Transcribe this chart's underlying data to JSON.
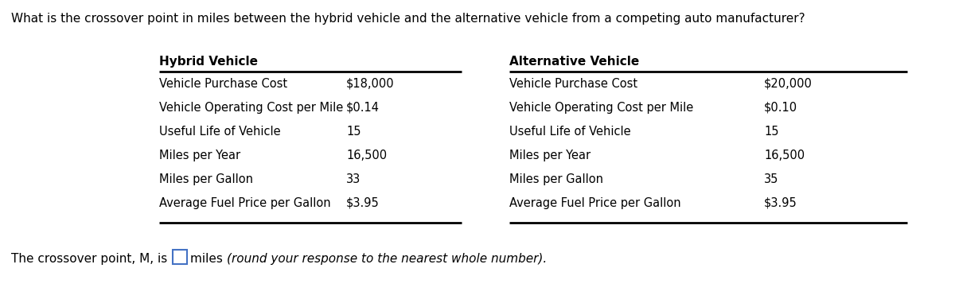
{
  "question": "What is the crossover point in miles between the hybrid vehicle and the alternative vehicle from a competing auto manufacturer?",
  "hybrid_title": "Hybrid Vehicle",
  "alternative_title": "Alternative Vehicle",
  "rows": [
    [
      "Vehicle Purchase Cost",
      "$18,000",
      "Vehicle Purchase Cost",
      "$20,000"
    ],
    [
      "Vehicle Operating Cost per Mile",
      "$0.14",
      "Vehicle Operating Cost per Mile",
      "$0.10"
    ],
    [
      "Useful Life of Vehicle",
      "15",
      "Useful Life of Vehicle",
      "15"
    ],
    [
      "Miles per Year",
      "16,500",
      "Miles per Year",
      "16,500"
    ],
    [
      "Miles per Gallon",
      "33",
      "Miles per Gallon",
      "35"
    ],
    [
      "Average Fuel Price per Gallon",
      "$3.95",
      "Average Fuel Price per Gallon",
      "$3.95"
    ]
  ],
  "footer_prefix": "The crossover point, M, is ",
  "footer_middle": "miles ",
  "footer_italic": "(round your response to the nearest whole number).",
  "bg_color": "#ffffff",
  "text_color": "#000000",
  "font_size": 10.5,
  "title_font_size": 11,
  "question_font_size": 11,
  "footer_font_size": 11,
  "box_color": "#4472C4"
}
